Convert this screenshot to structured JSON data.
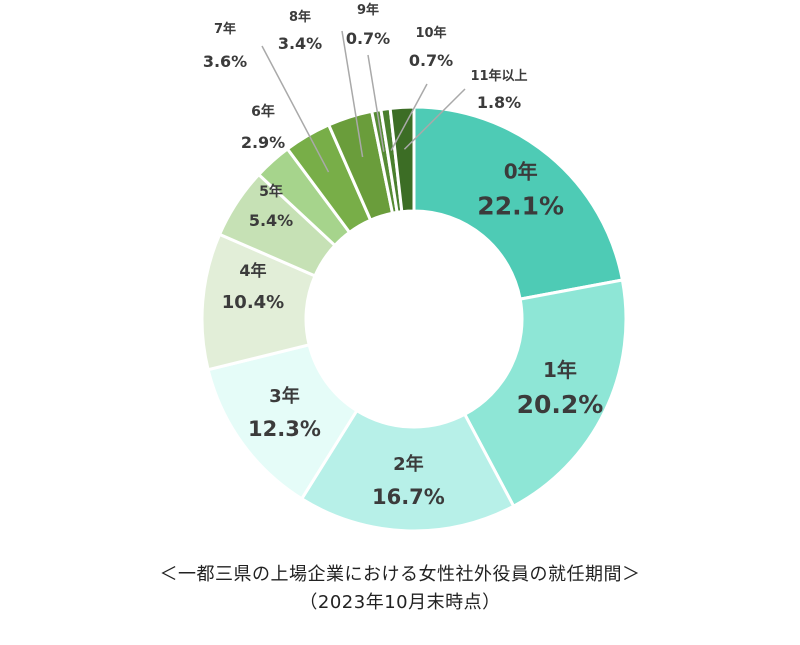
{
  "chart_data": {
    "type": "pie",
    "donut": true,
    "categories": [
      "0年",
      "1年",
      "2年",
      "3年",
      "4年",
      "5年",
      "6年",
      "7年",
      "8年",
      "9年",
      "10年",
      "11年以上"
    ],
    "values": [
      22.1,
      20.2,
      16.7,
      12.3,
      10.4,
      5.4,
      2.9,
      3.6,
      3.4,
      0.7,
      0.7,
      1.8
    ],
    "value_labels": [
      "22.1%",
      "20.2%",
      "16.7%",
      "12.3%",
      "10.4%",
      "5.4%",
      "2.9%",
      "3.6%",
      "3.4%",
      "0.7%",
      "0.7%",
      "1.8%"
    ],
    "colors": [
      "#4ECBB5",
      "#8EE6D6",
      "#B7F0E8",
      "#E5FCF8",
      "#E2EED8",
      "#C6E1B5",
      "#A6D48C",
      "#78AE48",
      "#6A9D3B",
      "#568B34",
      "#4A7F2E",
      "#3C6D25"
    ],
    "legend": false
  },
  "caption": {
    "line1": "＜一都三県の上場企業における女性社外役員の就任期間＞",
    "line2": "（2023年10月末時点）"
  }
}
